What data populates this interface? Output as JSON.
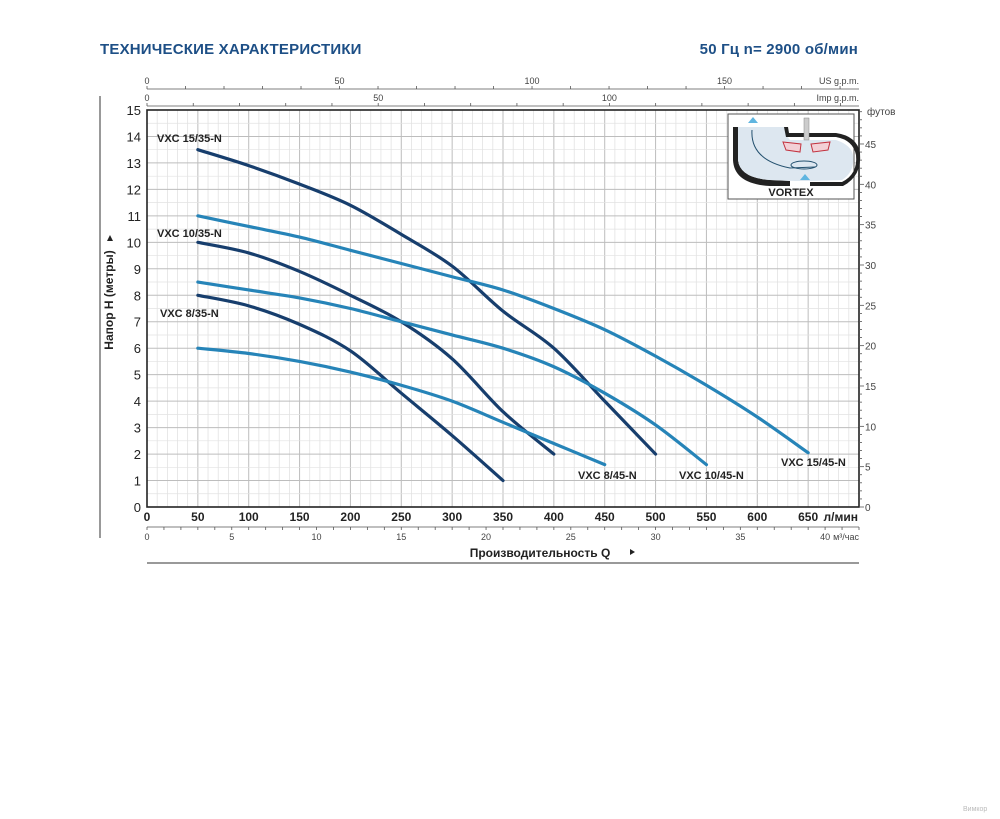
{
  "header": {
    "title": "ТЕХНИЧЕСКИЕ ХАРАКТЕРИСТИКИ",
    "frequency": "50 Гц  n= 2900 об/мин"
  },
  "watermark": "Вимкор",
  "chart_data": {
    "type": "line",
    "title": "ТЕХНИЧЕСКИЕ ХАРАКТЕРИСТИКИ",
    "subtitle": "50 Гц  n= 2900 об/мин",
    "xlabel": "Производительность  Q",
    "ylabel": "Напор  H (метры)",
    "x_unit": "л/мин",
    "xlim": [
      0,
      700
    ],
    "ylim": [
      0,
      15
    ],
    "x_ticks": [
      0,
      50,
      100,
      150,
      200,
      250,
      300,
      350,
      400,
      450,
      500,
      550,
      600,
      650
    ],
    "y_ticks": [
      0,
      1,
      2,
      3,
      4,
      5,
      6,
      7,
      8,
      9,
      10,
      11,
      12,
      13,
      14,
      15
    ],
    "grid": true,
    "secondary_axes": {
      "top_us": {
        "unit": "US g.p.m.",
        "ticks": [
          0,
          50,
          100,
          150
        ]
      },
      "top_imp": {
        "unit": "Imp g.p.m.",
        "ticks": [
          0,
          50,
          100
        ]
      },
      "bottom_m3h": {
        "unit": "м³/час",
        "ticks": [
          0,
          5,
          10,
          15,
          20,
          25,
          30,
          35,
          40
        ]
      },
      "right_ft": {
        "unit": "футов",
        "ticks": [
          0,
          5,
          10,
          15,
          20,
          25,
          30,
          35,
          40,
          45
        ]
      }
    },
    "inset": {
      "label": "VORTEX"
    },
    "colors": {
      "dark": "#173e6d",
      "light": "#2684b8",
      "title": "#1d4f86"
    },
    "series": [
      {
        "name": "VXC 15/35-N",
        "color": "dark",
        "x": [
          50,
          100,
          150,
          200,
          250,
          300,
          350,
          400,
          450,
          500
        ],
        "y": [
          13.5,
          12.9,
          12.2,
          11.4,
          10.3,
          9.1,
          7.4,
          6.0,
          4.0,
          2.0
        ]
      },
      {
        "name": "VXC 10/35-N",
        "color": "dark",
        "x": [
          50,
          100,
          150,
          200,
          250,
          300,
          350,
          400
        ],
        "y": [
          10.0,
          9.6,
          8.9,
          8.0,
          7.0,
          5.6,
          3.6,
          2.0
        ]
      },
      {
        "name": "VXC 8/35-N",
        "color": "dark",
        "x": [
          50,
          100,
          150,
          200,
          250,
          300,
          350
        ],
        "y": [
          8.0,
          7.6,
          6.9,
          5.9,
          4.3,
          2.7,
          1.0
        ]
      },
      {
        "name": "VXC 15/45-N",
        "color": "light",
        "x": [
          50,
          100,
          150,
          200,
          250,
          300,
          350,
          400,
          450,
          500,
          550,
          600,
          650
        ],
        "y": [
          11.0,
          10.6,
          10.2,
          9.7,
          9.2,
          8.7,
          8.2,
          7.5,
          6.7,
          5.7,
          4.6,
          3.4,
          2.05
        ]
      },
      {
        "name": "VXC 10/45-N",
        "color": "light",
        "x": [
          50,
          100,
          150,
          200,
          250,
          300,
          350,
          400,
          450,
          500,
          550
        ],
        "y": [
          8.5,
          8.2,
          7.9,
          7.5,
          7.0,
          6.5,
          6.0,
          5.3,
          4.3,
          3.1,
          1.6
        ]
      },
      {
        "name": "VXC 8/45-N",
        "color": "light",
        "x": [
          50,
          100,
          150,
          200,
          250,
          300,
          350,
          400,
          450
        ],
        "y": [
          6.0,
          5.8,
          5.5,
          5.1,
          4.6,
          4.0,
          3.2,
          2.4,
          1.6
        ]
      }
    ]
  }
}
